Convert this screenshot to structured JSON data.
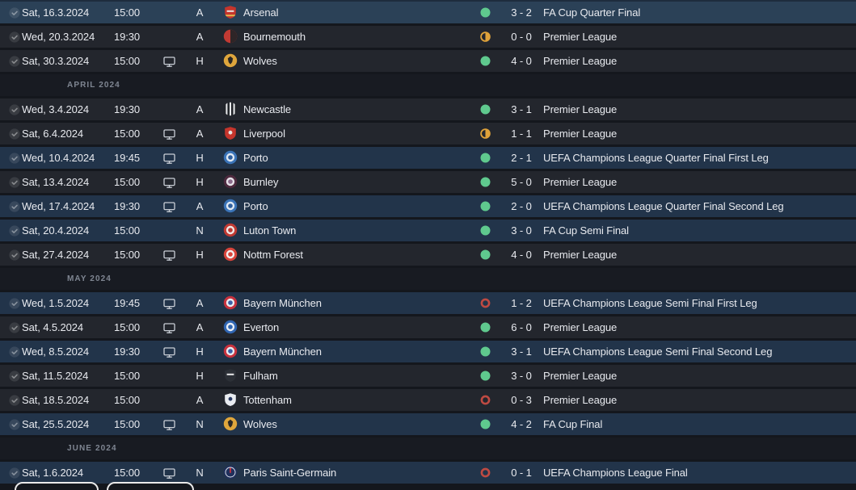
{
  "colors": {
    "page_bg": "#14171d",
    "row_league": "#23262d",
    "row_cup": "#22344a",
    "row_selected": "#2b4157",
    "row_header": "#181b22",
    "text": "#e8eaef",
    "text_muted": "#7f8692",
    "win": "#5fc98e",
    "draw": "#dfa23a",
    "loss": "#bf4a42",
    "icon": "#c9ced6",
    "check_fill": "rgba(255,255,255,0.10)",
    "check_mark": "rgba(255,255,255,0.40)",
    "button_border": "#e9e9e9"
  },
  "icons": {
    "completed": "check-circle-icon",
    "televised": "tv-monitor-icon",
    "win": "green-filled-circle",
    "draw": "amber-half-circle",
    "loss": "red-ring"
  },
  "badges": {
    "arsenal": {
      "type": "shield",
      "colors": [
        "#c5352c",
        "#e8e3e0",
        "#e2b64e"
      ],
      "emblem": "band"
    },
    "bournemouth": {
      "type": "halves",
      "colors": [
        "#c23a33",
        "#2e2527"
      ]
    },
    "wolves": {
      "type": "wolves",
      "colors": [
        "#dfa63c",
        "#2b2824"
      ]
    },
    "newcastle": {
      "type": "stripes",
      "colors": [
        "#23262b",
        "#e8eaec"
      ]
    },
    "liverpool": {
      "type": "shield",
      "colors": [
        "#c5352c",
        "#e8e3e0"
      ],
      "emblem": "dot"
    },
    "porto": {
      "type": "rings",
      "colors": [
        "#3b74b8",
        "#dfe8f2",
        "#2f5f9e"
      ]
    },
    "burnley": {
      "type": "rings",
      "colors": [
        "#4d2a3e",
        "#e6e2e8",
        "#8a6a8a"
      ]
    },
    "luton": {
      "type": "rings",
      "colors": [
        "#c03a33",
        "#efe8e6",
        "#c03a33"
      ]
    },
    "forest": {
      "type": "rings",
      "colors": [
        "#d8443b",
        "#f3efef",
        "#d8443b"
      ]
    },
    "bayern": {
      "type": "rings",
      "colors": [
        "#c8323e",
        "#e9ecf0",
        "#3c5fa8"
      ]
    },
    "everton": {
      "type": "rings",
      "colors": [
        "#3166b2",
        "#e9eef5",
        "#3166b2"
      ]
    },
    "fulham": {
      "type": "shield",
      "colors": [
        "#2c3037",
        "#e8e8ea"
      ],
      "emblem": "band"
    },
    "tottenham": {
      "type": "shield",
      "colors": [
        "#e9ecf1",
        "#2a3a63"
      ],
      "emblem": "dot"
    },
    "psg": {
      "type": "psg",
      "colors": [
        "#20305c",
        "#c8323e",
        "#e8ecf2"
      ]
    }
  },
  "rows": [
    {
      "kind": "fixture",
      "date": "Sat, 16.3.2024",
      "time": "15:00",
      "tv": false,
      "venue": "A",
      "team": "Arsenal",
      "badge": "arsenal",
      "result": "win",
      "score": "3 - 2",
      "competition": "FA Cup Quarter Final",
      "cup": true,
      "selected": true
    },
    {
      "kind": "fixture",
      "date": "Wed, 20.3.2024",
      "time": "19:30",
      "tv": false,
      "venue": "A",
      "team": "Bournemouth",
      "badge": "bournemouth",
      "result": "draw",
      "score": "0 - 0",
      "competition": "Premier League",
      "cup": false,
      "selected": false
    },
    {
      "kind": "fixture",
      "date": "Sat, 30.3.2024",
      "time": "15:00",
      "tv": true,
      "venue": "H",
      "team": "Wolves",
      "badge": "wolves",
      "result": "win",
      "score": "4 - 0",
      "competition": "Premier League",
      "cup": false,
      "selected": false
    },
    {
      "kind": "month",
      "label": "APRIL 2024"
    },
    {
      "kind": "fixture",
      "date": "Wed, 3.4.2024",
      "time": "19:30",
      "tv": false,
      "venue": "A",
      "team": "Newcastle",
      "badge": "newcastle",
      "result": "win",
      "score": "3 - 1",
      "competition": "Premier League",
      "cup": false,
      "selected": false
    },
    {
      "kind": "fixture",
      "date": "Sat, 6.4.2024",
      "time": "15:00",
      "tv": true,
      "venue": "A",
      "team": "Liverpool",
      "badge": "liverpool",
      "result": "draw",
      "score": "1 - 1",
      "competition": "Premier League",
      "cup": false,
      "selected": false
    },
    {
      "kind": "fixture",
      "date": "Wed, 10.4.2024",
      "time": "19:45",
      "tv": true,
      "venue": "H",
      "team": "Porto",
      "badge": "porto",
      "result": "win",
      "score": "2 - 1",
      "competition": "UEFA Champions League Quarter Final First Leg",
      "cup": true,
      "selected": false
    },
    {
      "kind": "fixture",
      "date": "Sat, 13.4.2024",
      "time": "15:00",
      "tv": true,
      "venue": "H",
      "team": "Burnley",
      "badge": "burnley",
      "result": "win",
      "score": "5 - 0",
      "competition": "Premier League",
      "cup": false,
      "selected": false
    },
    {
      "kind": "fixture",
      "date": "Wed, 17.4.2024",
      "time": "19:30",
      "tv": true,
      "venue": "A",
      "team": "Porto",
      "badge": "porto",
      "result": "win",
      "score": "2 - 0",
      "competition": "UEFA Champions League Quarter Final Second Leg",
      "cup": true,
      "selected": false
    },
    {
      "kind": "fixture",
      "date": "Sat, 20.4.2024",
      "time": "15:00",
      "tv": false,
      "venue": "N",
      "team": "Luton Town",
      "badge": "luton",
      "result": "win",
      "score": "3 - 0",
      "competition": "FA Cup Semi Final",
      "cup": true,
      "selected": false
    },
    {
      "kind": "fixture",
      "date": "Sat, 27.4.2024",
      "time": "15:00",
      "tv": true,
      "venue": "H",
      "team": "Nottm Forest",
      "badge": "forest",
      "result": "win",
      "score": "4 - 0",
      "competition": "Premier League",
      "cup": false,
      "selected": false
    },
    {
      "kind": "month",
      "label": "MAY 2024"
    },
    {
      "kind": "fixture",
      "date": "Wed, 1.5.2024",
      "time": "19:45",
      "tv": true,
      "venue": "A",
      "team": "Bayern München",
      "badge": "bayern",
      "result": "loss",
      "score": "1 - 2",
      "competition": "UEFA Champions League Semi Final First Leg",
      "cup": true,
      "selected": false
    },
    {
      "kind": "fixture",
      "date": "Sat, 4.5.2024",
      "time": "15:00",
      "tv": true,
      "venue": "A",
      "team": "Everton",
      "badge": "everton",
      "result": "win",
      "score": "6 - 0",
      "competition": "Premier League",
      "cup": false,
      "selected": false
    },
    {
      "kind": "fixture",
      "date": "Wed, 8.5.2024",
      "time": "19:30",
      "tv": true,
      "venue": "H",
      "team": "Bayern München",
      "badge": "bayern",
      "result": "win",
      "score": "3 - 1",
      "competition": "UEFA Champions League Semi Final Second Leg",
      "cup": true,
      "selected": false
    },
    {
      "kind": "fixture",
      "date": "Sat, 11.5.2024",
      "time": "15:00",
      "tv": false,
      "venue": "H",
      "team": "Fulham",
      "badge": "fulham",
      "result": "win",
      "score": "3 - 0",
      "competition": "Premier League",
      "cup": false,
      "selected": false
    },
    {
      "kind": "fixture",
      "date": "Sat, 18.5.2024",
      "time": "15:00",
      "tv": false,
      "venue": "A",
      "team": "Tottenham",
      "badge": "tottenham",
      "result": "loss",
      "score": "0 - 3",
      "competition": "Premier League",
      "cup": false,
      "selected": false
    },
    {
      "kind": "fixture",
      "date": "Sat, 25.5.2024",
      "time": "15:00",
      "tv": true,
      "venue": "N",
      "team": "Wolves",
      "badge": "wolves",
      "result": "win",
      "score": "4 - 2",
      "competition": "FA Cup Final",
      "cup": true,
      "selected": false
    },
    {
      "kind": "month",
      "label": "JUNE 2024"
    },
    {
      "kind": "fixture",
      "date": "Sat, 1.6.2024",
      "time": "15:00",
      "tv": true,
      "venue": "N",
      "team": "Paris Saint-Germain",
      "badge": "psg",
      "result": "loss",
      "score": "0 - 1",
      "competition": "UEFA Champions League Final",
      "cup": true,
      "selected": false
    }
  ],
  "bottom_buttons": [
    {
      "label": ""
    },
    {
      "label": ""
    }
  ]
}
